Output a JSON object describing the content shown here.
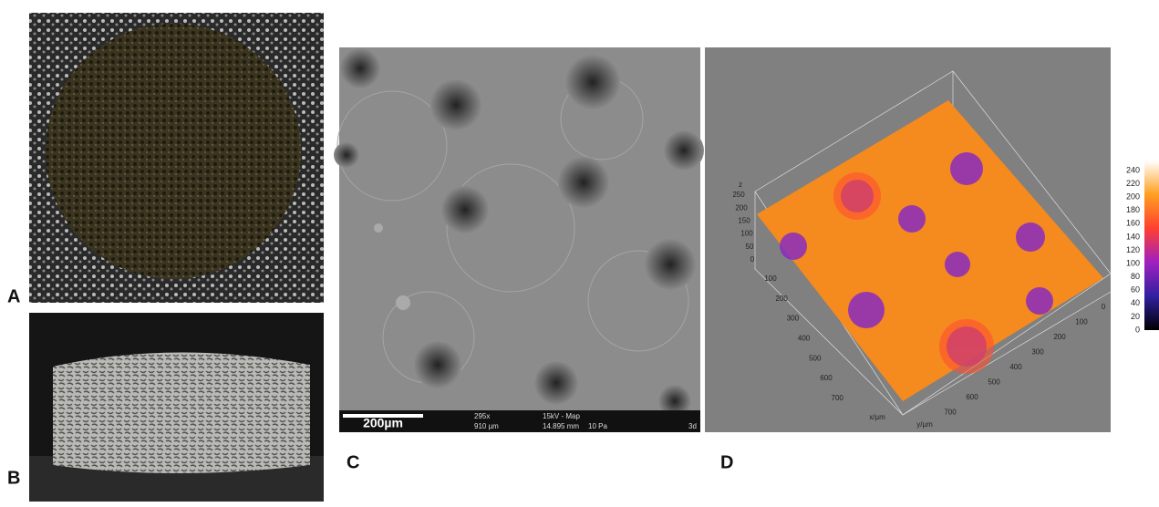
{
  "panels": {
    "a": {
      "label": "A"
    },
    "b": {
      "label": "B"
    },
    "c": {
      "label": "C",
      "scale_bar": "200µm",
      "info": {
        "magnification": "295x",
        "field": "910 µm",
        "voltage": "15kV - Map",
        "distance": "14.895 mm",
        "pressure": "10 Pa",
        "detector": "3d"
      }
    },
    "d": {
      "label": "D",
      "z_axis": {
        "title": "z",
        "ticks": [
          "250",
          "200",
          "150",
          "100",
          "50",
          "0"
        ]
      },
      "x_axis": {
        "title": "x/µm",
        "ticks": [
          "100",
          "200",
          "300",
          "400",
          "500",
          "600",
          "700"
        ]
      },
      "y_axis": {
        "title": "y/µm",
        "ticks": [
          "0",
          "100",
          "200",
          "300",
          "400",
          "500",
          "600",
          "700"
        ]
      },
      "colorbar": {
        "ticks": [
          "240",
          "220",
          "200",
          "180",
          "160",
          "140",
          "120",
          "100",
          "80",
          "60",
          "40",
          "20",
          "0"
        ]
      }
    }
  }
}
